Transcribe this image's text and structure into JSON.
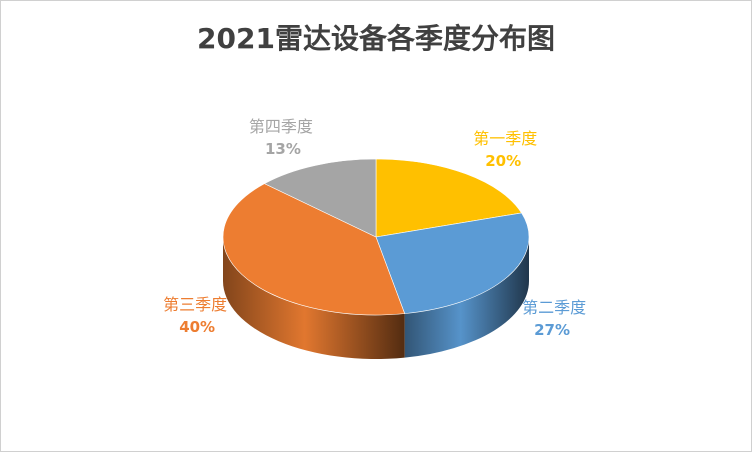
{
  "chart_data": {
    "type": "pie",
    "title": "2021雷达设备各季度分布图",
    "start_category": "第一季度",
    "categories": [
      "第一季度",
      "第二季度",
      "第三季度",
      "第四季度"
    ],
    "values": [
      20,
      27,
      40,
      13
    ],
    "value_labels": [
      "20%",
      "27%",
      "40%",
      "13%"
    ],
    "colors": [
      "#FFC000",
      "#5B9BD5",
      "#ED7D31",
      "#A5A5A5"
    ],
    "label_colors": [
      "#FFC000",
      "#5B9BD5",
      "#ED7D31",
      "#A5A5A5"
    ],
    "style": "3d",
    "legend": "none"
  }
}
